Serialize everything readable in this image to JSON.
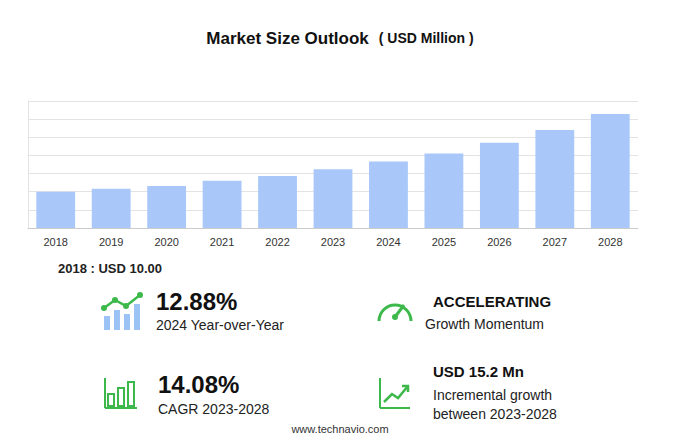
{
  "chart_data": {
    "type": "bar",
    "title": "Market Size Outlook",
    "subtitle": "( USD Million )",
    "categories": [
      "2018",
      "2019",
      "2020",
      "2021",
      "2022",
      "2023",
      "2024",
      "2025",
      "2026",
      "2027",
      "2028"
    ],
    "values": [
      10.0,
      10.8,
      11.6,
      13.0,
      14.3,
      16.2,
      18.3,
      20.5,
      23.5,
      27.0,
      31.4
    ],
    "color": "#a9c8f9",
    "ylim": [
      0,
      35
    ],
    "yticks": [
      0,
      5,
      10,
      15,
      20,
      25,
      30,
      35
    ],
    "grid": true,
    "tick_labels": "x",
    "annotations": {
      "base_year": "2018 : USD  10.00",
      "kpis": [
        {
          "value": "12.88%",
          "label": "2024 Year-over-Year"
        },
        {
          "value": "ACCELERATING",
          "label": "Growth Momentum"
        },
        {
          "value": "14.08%",
          "label": "CAGR 2023-2028"
        },
        {
          "value": "USD 15.2 Mn",
          "label": "Incremental growth between 2023-2028"
        }
      ],
      "source": "www.technavio.com"
    }
  }
}
